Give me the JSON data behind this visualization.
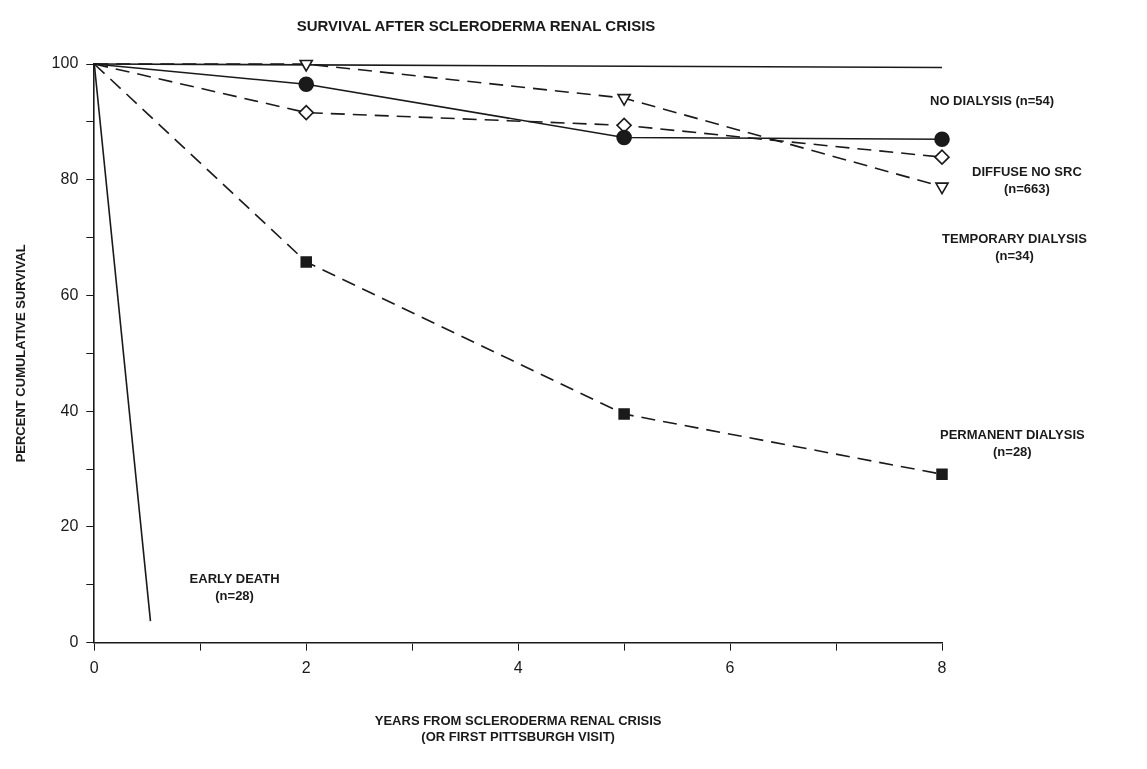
{
  "chart_data": {
    "type": "line",
    "title": "SURVIVAL AFTER SCLERODERMA RENAL CRISIS",
    "xlabel": "YEARS FROM SCLERODERMA RENAL CRISIS\n(OR FIRST PITTSBURGH VISIT)",
    "ylabel": "PERCENT CUMULATIVE SURVIVAL",
    "xlim": [
      0,
      8
    ],
    "ylim": [
      0,
      100
    ],
    "xticks": [
      0,
      {
        "value": 1,
        "label": null
      },
      2,
      {
        "value": 3,
        "label": null
      },
      4,
      {
        "value": 5,
        "label": null
      },
      6,
      {
        "value": 7,
        "label": null
      },
      8
    ],
    "yticks": [
      0,
      {
        "value": 10,
        "label": null
      },
      20,
      {
        "value": 30,
        "label": null
      },
      40,
      {
        "value": 50,
        "label": null
      },
      60,
      {
        "value": 70,
        "label": null
      },
      80,
      {
        "value": 90,
        "label": null
      },
      100
    ],
    "grid": false,
    "legend": false,
    "series": [
      {
        "name": "NO DIALYSIS (n=54)",
        "color": "#1a1a1a",
        "x": [
          0,
          2,
          5,
          8
        ],
        "values": [
          100,
          96.5,
          87.3,
          87.0
        ],
        "marker": "circle",
        "line_style": "solid"
      },
      {
        "name": "DIFFUSE NO SRC (n=663)",
        "color": "#1a1a1a",
        "x": [
          0,
          2,
          5,
          8
        ],
        "values": [
          100,
          91.6,
          89.4,
          83.9
        ],
        "marker": "diamond",
        "line_style": "dashed"
      },
      {
        "name": "TEMPORARY DIALYSIS (n=34)",
        "color": "#1a1a1a",
        "x": [
          0,
          2,
          5,
          8
        ],
        "values": [
          100,
          100,
          94.1,
          78.8
        ],
        "marker": "triangle",
        "line_style": "dashed"
      },
      {
        "name": "PERMANENT DIALYSIS (n=28)",
        "color": "#1a1a1a",
        "x": [
          0,
          2,
          5,
          8
        ],
        "values": [
          100,
          65.8,
          39.5,
          29.1
        ],
        "marker": "square",
        "line_style": "dashed"
      },
      {
        "name": "EARLY DEATH (n=28)",
        "color": "#1a1a1a",
        "x": [
          0,
          0.53
        ],
        "values": [
          100,
          3.7
        ],
        "marker": "none",
        "line_style": "solid"
      },
      {
        "color": "#1a1a1a",
        "x": [
          0,
          8
        ],
        "values": [
          100,
          99.4
        ],
        "marker": "none",
        "line_style": "solid"
      }
    ]
  }
}
